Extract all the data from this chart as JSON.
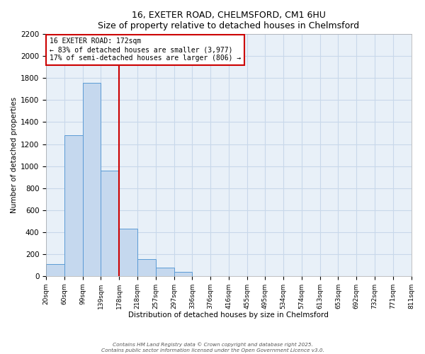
{
  "title_line1": "16, EXETER ROAD, CHELMSFORD, CM1 6HU",
  "title_line2": "Size of property relative to detached houses in Chelmsford",
  "xlabel": "Distribution of detached houses by size in Chelmsford",
  "ylabel": "Number of detached properties",
  "bar_values": [
    110,
    1280,
    1760,
    960,
    430,
    150,
    75,
    35,
    0,
    0,
    0,
    0,
    0,
    0,
    0,
    0,
    0,
    0,
    0,
    0
  ],
  "bin_labels": [
    "20sqm",
    "60sqm",
    "99sqm",
    "139sqm",
    "178sqm",
    "218sqm",
    "257sqm",
    "297sqm",
    "336sqm",
    "376sqm",
    "416sqm",
    "455sqm",
    "495sqm",
    "534sqm",
    "574sqm",
    "613sqm",
    "653sqm",
    "692sqm",
    "732sqm",
    "771sqm",
    "811sqm"
  ],
  "bar_color": "#c5d8ee",
  "bar_edge_color": "#5b9bd5",
  "grid_color": "#c8d8ea",
  "background_color": "#e8f0f8",
  "vline_x": 4,
  "vline_color": "#cc0000",
  "annotation_title": "16 EXETER ROAD: 172sqm",
  "annotation_line2": "← 83% of detached houses are smaller (3,977)",
  "annotation_line3": "17% of semi-detached houses are larger (806) →",
  "annotation_box_color": "#cc0000",
  "ylim": [
    0,
    2200
  ],
  "yticks": [
    0,
    200,
    400,
    600,
    800,
    1000,
    1200,
    1400,
    1600,
    1800,
    2000,
    2200
  ],
  "footer_line1": "Contains HM Land Registry data © Crown copyright and database right 2025.",
  "footer_line2": "Contains public sector information licensed under the Open Government Licence v3.0."
}
